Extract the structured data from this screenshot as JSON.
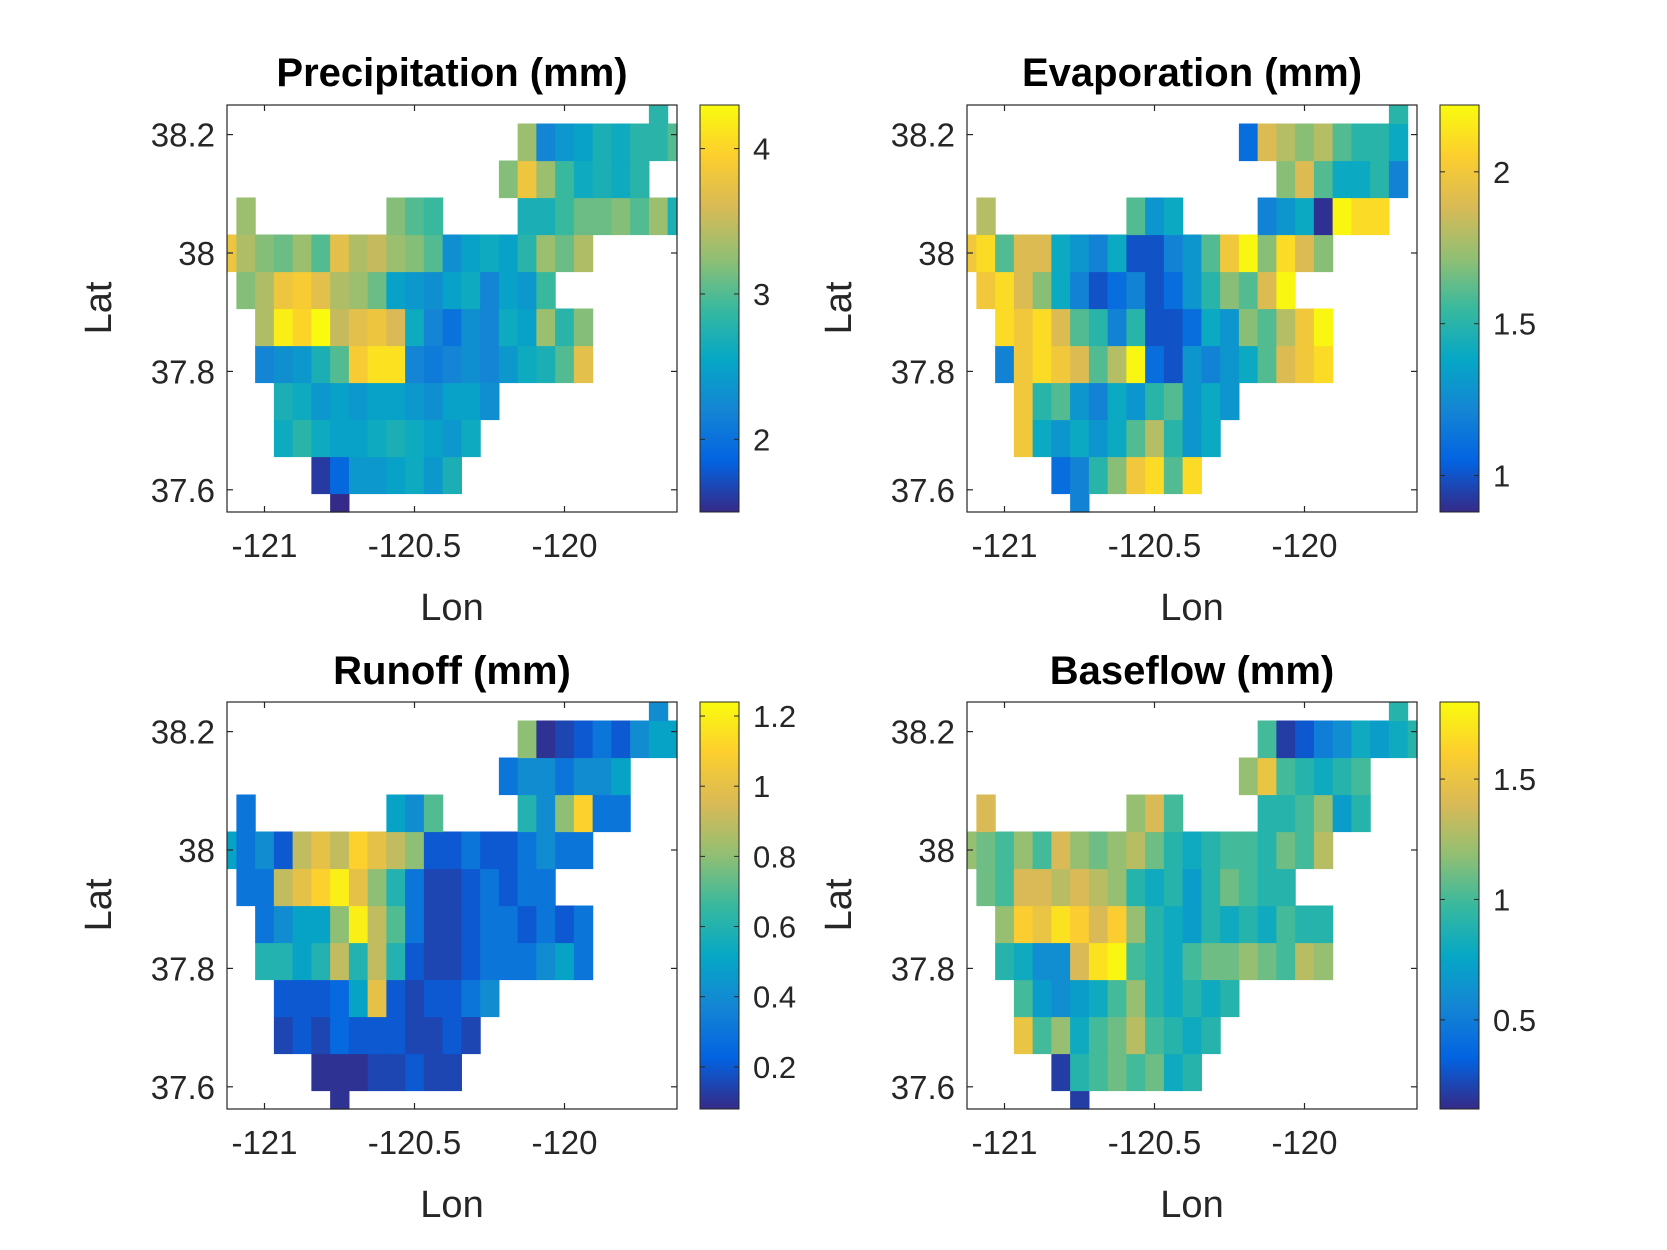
{
  "chart_data": [
    {
      "type": "heatmap",
      "title": "Precipitation (mm)",
      "xlabel": "Lon",
      "ylabel": "Lat",
      "xlim": [
        -121.125,
        -119.625
      ],
      "ylim": [
        37.5625,
        38.25
      ],
      "xticks": [
        -121,
        -120.5,
        -120
      ],
      "xtick_labels": [
        "-121",
        "-120.5",
        "-120"
      ],
      "yticks": [
        37.6,
        37.8,
        38,
        38.2
      ],
      "ytick_labels": [
        "37.6",
        "37.8",
        "38",
        "38.2"
      ],
      "colormap": "parula",
      "clim": [
        1.5,
        4.3
      ],
      "colorbar_ticks": [
        2,
        3,
        4
      ],
      "colorbar_tick_labels": [
        "2",
        "3",
        "4"
      ],
      "cell_size": 0.0625,
      "rows": [
        {
          "lat": 37.5625,
          "lon_start": -120.75,
          "values": [
            1.5
          ]
        },
        {
          "lat": 37.625,
          "lon_start": -120.8125,
          "values": [
            1.6,
            1.9,
            2.4,
            2.4,
            2.5,
            2.6,
            2.4,
            2.7
          ]
        },
        {
          "lat": 37.6875,
          "lon_start": -120.9375,
          "values": [
            2.6,
            2.8,
            2.6,
            2.5,
            2.5,
            2.6,
            2.7,
            2.6,
            2.5,
            2.4,
            2.6
          ]
        },
        {
          "lat": 37.75,
          "lon_start": -120.9375,
          "values": [
            2.7,
            2.6,
            2.4,
            2.5,
            2.4,
            2.5,
            2.5,
            2.4,
            2.3,
            2.5,
            2.5,
            2.3
          ]
        },
        {
          "lat": 37.8125,
          "lon_start": -121.0,
          "values": [
            2.2,
            2.3,
            2.4,
            2.7,
            3.0,
            3.9,
            4.1,
            4.1,
            2.2,
            2.1,
            2.2,
            2.3,
            2.2,
            2.4,
            2.6,
            2.7,
            3.0,
            3.7
          ]
        },
        {
          "lat": 37.875,
          "lon_start": -121.0,
          "values": [
            3.4,
            4.2,
            4.0,
            4.3,
            3.5,
            3.7,
            3.8,
            3.6,
            2.6,
            2.2,
            2.0,
            2.3,
            2.2,
            2.6,
            2.5,
            3.3,
            2.8,
            3.2
          ]
        },
        {
          "lat": 37.9375,
          "lon_start": -121.0625,
          "values": [
            3.2,
            3.4,
            3.8,
            3.9,
            3.7,
            3.4,
            3.3,
            3.1,
            2.5,
            2.4,
            2.3,
            2.5,
            2.6,
            2.2,
            2.5,
            2.4,
            2.9
          ]
        },
        {
          "lat": 38.0,
          "lon_start": -121.125,
          "values": [
            3.8,
            3.4,
            3.2,
            3.1,
            3.3,
            3.0,
            3.7,
            3.4,
            3.5,
            3.3,
            3.2,
            3.0,
            2.3,
            2.5,
            2.6,
            2.5,
            2.8,
            3.3,
            3.1,
            3.4
          ]
        },
        {
          "lat": 38.0625,
          "lon_start": -121.0625,
          "values": [
            3.3,
            null,
            null,
            null,
            null,
            null,
            null,
            null,
            3.2,
            3.0,
            2.9,
            null,
            null,
            null,
            null,
            2.7,
            2.7,
            2.9,
            3.1,
            3.1,
            3.2,
            3.0,
            3.3,
            2.7
          ]
        },
        {
          "lat": 38.125,
          "lon_start": -120.1875,
          "values": [
            3.2,
            3.8,
            3.3,
            2.9,
            2.6,
            2.7,
            2.6,
            2.8
          ]
        },
        {
          "lat": 38.1875,
          "lon_start": -120.125,
          "values": [
            3.3,
            2.2,
            2.4,
            2.5,
            2.7,
            2.6,
            2.8,
            2.8,
            3.0
          ]
        },
        {
          "lat": 38.25,
          "lon_start": -119.6875,
          "values": [
            2.8
          ]
        }
      ]
    },
    {
      "type": "heatmap",
      "title": "Evaporation (mm)",
      "xlabel": "Lon",
      "ylabel": "Lat",
      "xlim": [
        -121.125,
        -119.625
      ],
      "ylim": [
        37.5625,
        38.25
      ],
      "xticks": [
        -121,
        -120.5,
        -120
      ],
      "xtick_labels": [
        "-121",
        "-120.5",
        "-120"
      ],
      "yticks": [
        37.6,
        37.8,
        38,
        38.2
      ],
      "ytick_labels": [
        "37.6",
        "37.8",
        "38",
        "38.2"
      ],
      "colormap": "parula",
      "clim": [
        0.88,
        2.22
      ],
      "colorbar_ticks": [
        1,
        1.5,
        2
      ],
      "colorbar_tick_labels": [
        "1",
        "1.5",
        "2"
      ],
      "cell_size": 0.0625,
      "rows": [
        {
          "lat": 37.5625,
          "lon_start": -120.75,
          "values": [
            1.2
          ]
        },
        {
          "lat": 37.625,
          "lon_start": -120.8125,
          "values": [
            1.1,
            1.2,
            1.5,
            1.7,
            2.0,
            2.1,
            1.6,
            2.1
          ]
        },
        {
          "lat": 37.6875,
          "lon_start": -120.9375,
          "values": [
            2.0,
            1.4,
            1.3,
            1.4,
            1.3,
            1.4,
            1.6,
            1.8,
            1.5,
            1.3,
            1.4
          ]
        },
        {
          "lat": 37.75,
          "lon_start": -120.9375,
          "values": [
            2.0,
            1.5,
            1.6,
            1.3,
            1.2,
            1.4,
            1.3,
            1.5,
            1.6,
            1.3,
            1.4,
            1.3
          ]
        },
        {
          "lat": 37.8125,
          "lon_start": -121.0,
          "values": [
            1.2,
            2.0,
            2.1,
            2.0,
            1.9,
            1.6,
            1.8,
            2.2,
            1.1,
            1.0,
            1.3,
            1.2,
            1.3,
            1.4,
            1.6,
            1.9,
            2.0,
            2.1
          ]
        },
        {
          "lat": 37.875,
          "lon_start": -121.0,
          "values": [
            2.1,
            2.0,
            2.1,
            1.9,
            1.6,
            1.5,
            1.2,
            1.5,
            1.0,
            1.0,
            1.1,
            1.4,
            1.3,
            1.7,
            1.6,
            1.8,
            2.0,
            2.2
          ]
        },
        {
          "lat": 37.9375,
          "lon_start": -121.0625,
          "values": [
            2.0,
            2.1,
            1.9,
            1.7,
            1.4,
            1.2,
            1.0,
            1.1,
            1.2,
            1.0,
            1.1,
            1.3,
            1.5,
            1.7,
            1.6,
            1.9,
            2.2
          ]
        },
        {
          "lat": 38.0,
          "lon_start": -121.125,
          "values": [
            2.0,
            2.1,
            1.6,
            1.9,
            1.9,
            1.4,
            1.3,
            1.2,
            1.4,
            1.0,
            1.0,
            1.2,
            1.3,
            1.6,
            2.0,
            2.2,
            1.7,
            2.1,
            1.9,
            1.7
          ]
        },
        {
          "lat": 38.0625,
          "lon_start": -121.0625,
          "values": [
            1.8,
            null,
            null,
            null,
            null,
            null,
            null,
            null,
            1.6,
            1.3,
            1.4,
            null,
            null,
            null,
            null,
            1.2,
            1.3,
            1.4,
            0.9,
            2.2,
            2.1,
            2.1
          ]
        },
        {
          "lat": 38.125,
          "lon_start": -120.0625,
          "values": [
            1.7,
            1.9,
            1.6,
            1.4,
            1.4,
            1.5,
            1.2
          ]
        },
        {
          "lat": 38.1875,
          "lon_start": -120.1875,
          "values": [
            1.1,
            1.9,
            1.8,
            1.7,
            1.8,
            1.6,
            1.5,
            1.5,
            1.4
          ]
        },
        {
          "lat": 38.25,
          "lon_start": -119.6875,
          "values": [
            1.5
          ]
        }
      ]
    },
    {
      "type": "heatmap",
      "title": "Runoff (mm)",
      "xlabel": "Lon",
      "ylabel": "Lat",
      "xlim": [
        -121.125,
        -119.625
      ],
      "ylim": [
        37.5625,
        38.25
      ],
      "xticks": [
        -121,
        -120.5,
        -120
      ],
      "xtick_labels": [
        "-121",
        "-120.5",
        "-120"
      ],
      "yticks": [
        37.6,
        37.8,
        38,
        38.2
      ],
      "ytick_labels": [
        "37.6",
        "37.8",
        "38",
        "38.2"
      ],
      "colormap": "parula",
      "clim": [
        0.08,
        1.24
      ],
      "colorbar_ticks": [
        0.2,
        0.4,
        0.6,
        0.8,
        1,
        1.2
      ],
      "colorbar_tick_labels": [
        "0.2",
        "0.4",
        "0.6",
        "0.8",
        "1",
        "1.2"
      ],
      "cell_size": 0.0625,
      "rows": [
        {
          "lat": 37.5625,
          "lon_start": -120.75,
          "values": [
            0.1
          ]
        },
        {
          "lat": 37.625,
          "lon_start": -120.8125,
          "values": [
            0.1,
            0.1,
            0.1,
            0.15,
            0.15,
            0.2,
            0.15,
            0.15
          ]
        },
        {
          "lat": 37.6875,
          "lon_start": -120.9375,
          "values": [
            0.15,
            0.2,
            0.15,
            0.25,
            0.2,
            0.2,
            0.2,
            0.15,
            0.15,
            0.2,
            0.15
          ]
        },
        {
          "lat": 37.75,
          "lon_start": -120.9375,
          "values": [
            0.2,
            0.2,
            0.2,
            0.25,
            0.5,
            1.0,
            0.2,
            0.15,
            0.2,
            0.2,
            0.3,
            0.4
          ]
        },
        {
          "lat": 37.8125,
          "lon_start": -121.0,
          "values": [
            0.6,
            0.6,
            0.5,
            0.6,
            0.9,
            0.6,
            0.9,
            0.6,
            0.2,
            0.15,
            0.15,
            0.2,
            0.3,
            0.3,
            0.3,
            0.4,
            0.5,
            0.3
          ]
        },
        {
          "lat": 37.875,
          "lon_start": -121.0,
          "values": [
            0.3,
            0.4,
            0.5,
            0.5,
            0.8,
            1.2,
            0.9,
            0.7,
            0.3,
            0.15,
            0.15,
            0.2,
            0.3,
            0.3,
            0.2,
            0.3,
            0.2,
            0.3
          ]
        },
        {
          "lat": 37.9375,
          "lon_start": -121.0625,
          "values": [
            0.3,
            0.3,
            0.9,
            1.0,
            1.1,
            1.2,
            1.0,
            0.8,
            0.6,
            0.3,
            0.15,
            0.15,
            0.2,
            0.3,
            0.2,
            0.3,
            0.3
          ]
        },
        {
          "lat": 38.0,
          "lon_start": -121.125,
          "values": [
            0.5,
            0.3,
            0.4,
            0.2,
            0.9,
            1.0,
            0.9,
            1.1,
            1.0,
            0.9,
            0.8,
            0.2,
            0.2,
            0.3,
            0.2,
            0.2,
            0.3,
            0.4,
            0.3,
            0.3
          ]
        },
        {
          "lat": 38.0625,
          "lon_start": -121.0625,
          "values": [
            0.3,
            null,
            null,
            null,
            null,
            null,
            null,
            null,
            0.5,
            0.4,
            0.7,
            null,
            null,
            null,
            null,
            0.6,
            0.4,
            0.8,
            1.1,
            0.3,
            0.3
          ]
        },
        {
          "lat": 38.125,
          "lon_start": -120.1875,
          "values": [
            0.3,
            0.4,
            0.4,
            0.3,
            0.4,
            0.4,
            0.5
          ]
        },
        {
          "lat": 38.1875,
          "lon_start": -120.125,
          "values": [
            0.8,
            0.1,
            0.15,
            0.2,
            0.3,
            0.2,
            0.4,
            0.5,
            0.5
          ]
        },
        {
          "lat": 38.25,
          "lon_start": -119.6875,
          "values": [
            0.4
          ]
        }
      ]
    },
    {
      "type": "heatmap",
      "title": "Baseflow (mm)",
      "xlabel": "Lon",
      "ylabel": "Lat",
      "xlim": [
        -121.125,
        -119.625
      ],
      "ylim": [
        37.5625,
        38.25
      ],
      "xticks": [
        -121,
        -120.5,
        -120
      ],
      "xtick_labels": [
        "-121",
        "-120.5",
        "-120"
      ],
      "yticks": [
        37.6,
        37.8,
        38,
        38.2
      ],
      "ytick_labels": [
        "37.6",
        "37.8",
        "38",
        "38.2"
      ],
      "colormap": "parula",
      "clim": [
        0.13,
        1.82
      ],
      "colorbar_ticks": [
        0.5,
        1,
        1.5
      ],
      "colorbar_tick_labels": [
        "0.5",
        "1",
        "1.5"
      ],
      "cell_size": 0.0625,
      "rows": [
        {
          "lat": 37.5625,
          "lon_start": -120.75,
          "values": [
            0.2
          ]
        },
        {
          "lat": 37.625,
          "lon_start": -120.8125,
          "values": [
            0.2,
            0.9,
            1.0,
            1.1,
            1.0,
            1.1,
            0.8,
            0.9
          ]
        },
        {
          "lat": 37.6875,
          "lon_start": -120.9375,
          "values": [
            1.5,
            1.0,
            1.2,
            0.8,
            1.0,
            1.1,
            1.3,
            1.0,
            0.9,
            0.8,
            0.9
          ]
        },
        {
          "lat": 37.75,
          "lon_start": -120.9375,
          "values": [
            1.0,
            0.7,
            0.6,
            0.7,
            0.8,
            1.0,
            1.2,
            0.9,
            0.8,
            0.9,
            0.8,
            0.9
          ]
        },
        {
          "lat": 37.8125,
          "lon_start": -121.0,
          "values": [
            0.9,
            0.8,
            0.6,
            0.6,
            1.4,
            1.7,
            1.8,
            1.0,
            0.9,
            0.8,
            1.0,
            1.1,
            1.1,
            1.2,
            1.1,
            1.0,
            1.3,
            1.2
          ]
        },
        {
          "lat": 37.875,
          "lon_start": -121.0,
          "values": [
            1.2,
            1.6,
            1.5,
            1.7,
            1.6,
            1.4,
            1.6,
            1.2,
            0.9,
            0.8,
            0.7,
            0.9,
            0.8,
            0.9,
            0.8,
            1.0,
            0.9,
            0.9
          ]
        },
        {
          "lat": 37.9375,
          "lon_start": -121.0625,
          "values": [
            1.1,
            1.0,
            1.4,
            1.4,
            1.3,
            1.4,
            1.3,
            1.2,
            0.9,
            0.8,
            0.9,
            0.7,
            0.9,
            1.1,
            1.0,
            0.9,
            0.9
          ]
        },
        {
          "lat": 38.0,
          "lon_start": -121.125,
          "values": [
            1.2,
            1.1,
            1.0,
            1.2,
            1.0,
            1.4,
            1.2,
            1.1,
            1.2,
            1.3,
            1.1,
            0.9,
            0.8,
            0.9,
            1.0,
            1.0,
            0.9,
            1.1,
            1.0,
            1.3
          ]
        },
        {
          "lat": 38.0625,
          "lon_start": -121.0625,
          "values": [
            1.4,
            null,
            null,
            null,
            null,
            null,
            null,
            null,
            1.2,
            1.4,
            1.0,
            null,
            null,
            null,
            null,
            0.9,
            0.9,
            1.0,
            1.2,
            0.7,
            0.9
          ]
        },
        {
          "lat": 38.125,
          "lon_start": -120.1875,
          "values": [
            1.2,
            1.5,
            1.0,
            0.9,
            0.8,
            0.9,
            1.0
          ]
        },
        {
          "lat": 38.1875,
          "lon_start": -120.125,
          "values": [
            1.0,
            0.2,
            0.3,
            0.5,
            0.6,
            0.8,
            0.7,
            0.8,
            0.9
          ]
        },
        {
          "lat": 38.25,
          "lon_start": -119.6875,
          "values": [
            0.9
          ]
        }
      ]
    }
  ]
}
